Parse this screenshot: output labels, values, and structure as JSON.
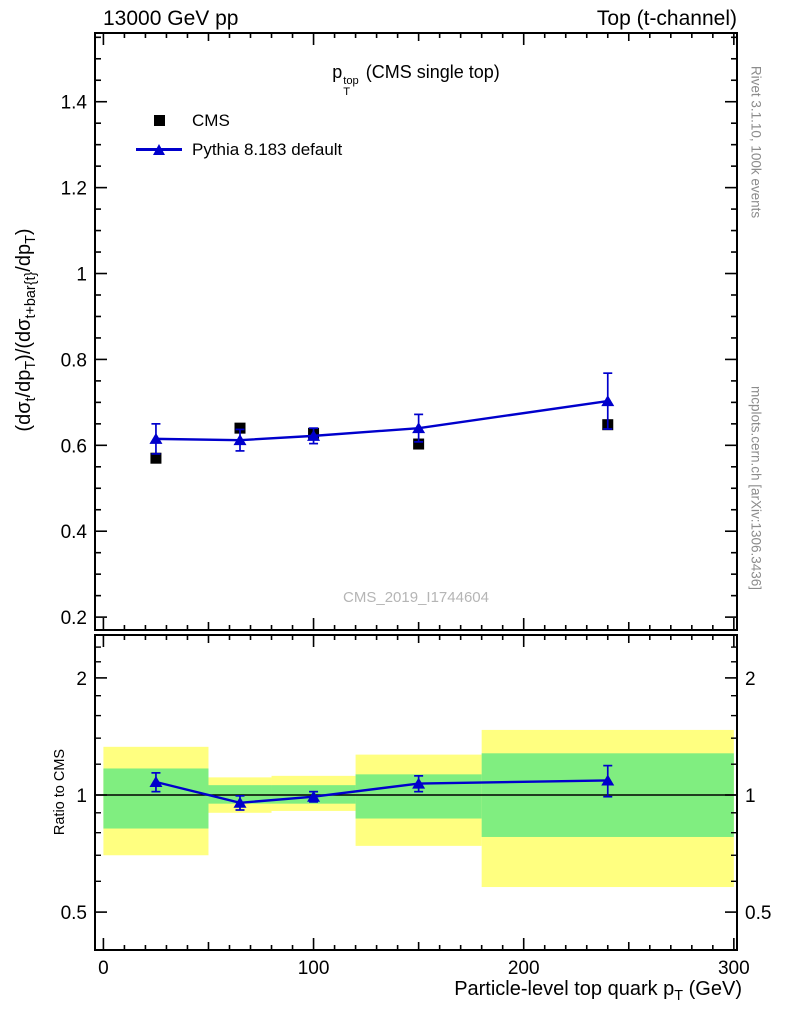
{
  "header": {
    "left_label": "13000 GeV pp",
    "right_label": "Top (t-channel)"
  },
  "side_notes": {
    "top_right": "Rivet 3.1.10,  100k events",
    "bottom_right": "mcplots.cern.ch [arXiv:1306.3436]",
    "color": "#8c8c8c"
  },
  "watermark": {
    "text": "CMS_2019_I1744604",
    "color": "#b5b5b5"
  },
  "titles": {
    "main": {
      "base": "p",
      "sup": "top",
      "sub": "T",
      "rest": " (CMS single top)"
    },
    "xlabel": {
      "segments": [
        {
          "t": "Particle-level top quark p"
        },
        {
          "t": "T",
          "m": "sub"
        },
        {
          "t": " (GeV)"
        }
      ]
    },
    "ylabel_main": {
      "segments": [
        {
          "t": "(d"
        },
        {
          "t": "σ"
        },
        {
          "t": "t",
          "m": "sub"
        },
        {
          "t": "/dp"
        },
        {
          "t": "T",
          "m": "sub"
        },
        {
          "t": ")/(d"
        },
        {
          "t": "σ"
        },
        {
          "t": "t+bar{t}",
          "m": "sub"
        },
        {
          "t": "/dp"
        },
        {
          "t": "T",
          "m": "sub"
        },
        {
          "t": ")"
        }
      ]
    },
    "ylabel_ratio": "Ratio to CMS"
  },
  "legend": [
    {
      "label": "CMS",
      "marker": "black-square",
      "color": "#000000"
    },
    {
      "label": "Pythia 8.183 default",
      "marker": "blue-triangle-line",
      "color": "#0000cc"
    }
  ],
  "chart_data": {
    "type": "line",
    "title": "pT_top (CMS single top)",
    "xlabel": "Particle-level top quark pT (GeV)",
    "x_range": [
      0,
      300
    ],
    "x_ticks": [
      0,
      100,
      200,
      300
    ],
    "main": {
      "ylabel": "(dσ_t/dp_T)/(dσ_{t+bar{t}}/dp_T)",
      "y_ticks": [
        0.2,
        0.4,
        0.6,
        0.8,
        1,
        1.2,
        1.4
      ],
      "series": [
        {
          "name": "CMS",
          "marker": "square",
          "color": "#000000",
          "line": false,
          "x": [
            25,
            65,
            100,
            150,
            240
          ],
          "y": [
            0.57,
            0.64,
            0.628,
            0.603,
            0.648
          ]
        },
        {
          "name": "Pythia 8.183 default",
          "marker": "triangle",
          "color": "#0000cc",
          "line": true,
          "x": [
            25,
            65,
            100,
            150,
            240
          ],
          "y": [
            0.615,
            0.612,
            0.622,
            0.64,
            0.703
          ],
          "yerr": [
            0.035,
            0.025,
            0.018,
            0.032,
            0.065
          ]
        }
      ]
    },
    "ratio": {
      "ylabel": "Ratio to CMS",
      "scale": "log",
      "y_ticks": [
        0.5,
        1,
        2
      ],
      "y_minor_ticks": [
        0.6,
        0.7,
        0.8,
        0.9,
        1.2,
        1.4,
        1.6,
        1.8,
        2.2,
        2.4
      ],
      "reference_line": 1,
      "bands": {
        "bin_edges": [
          0,
          50,
          80,
          120,
          180,
          300
        ],
        "outer_color": "#ffff80",
        "inner_color": "#80ee80",
        "outer": [
          [
            0.7,
            1.33
          ],
          [
            0.9,
            1.11
          ],
          [
            0.91,
            1.12
          ],
          [
            0.74,
            1.27
          ],
          [
            0.58,
            1.47
          ]
        ],
        "inner": [
          [
            0.82,
            1.17
          ],
          [
            0.95,
            1.06
          ],
          [
            0.95,
            1.06
          ],
          [
            0.87,
            1.13
          ],
          [
            0.78,
            1.28
          ]
        ]
      },
      "series": [
        {
          "name": "Pythia 8.183 default",
          "marker": "triangle",
          "color": "#0000cc",
          "line": true,
          "x": [
            25,
            65,
            100,
            150,
            240
          ],
          "y": [
            1.08,
            0.955,
            0.99,
            1.07,
            1.09
          ],
          "yerr": [
            0.06,
            0.04,
            0.03,
            0.05,
            0.1
          ]
        }
      ]
    }
  }
}
